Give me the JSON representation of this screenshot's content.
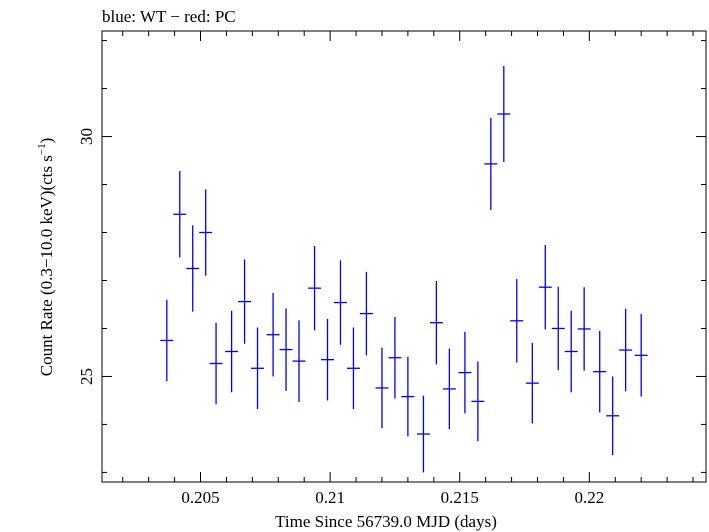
{
  "chart_data": {
    "type": "scatter",
    "title": "blue: WT − red: PC",
    "xlabel": "Time Since 56739.0 MJD (days)",
    "ylabel_main": "Count Rate (0.3−10.0 keV)(cts s",
    "ylabel_sup": "−1",
    "ylabel_end": ")",
    "xlim": [
      0.2012,
      0.2245
    ],
    "ylim": [
      22.8,
      32.2
    ],
    "x_ticks": [
      {
        "value": 0.205,
        "label": "0.205"
      },
      {
        "value": 0.21,
        "label": "0.21"
      },
      {
        "value": 0.215,
        "label": "0.215"
      },
      {
        "value": 0.22,
        "label": "0.22"
      }
    ],
    "y_ticks": [
      {
        "value": 25,
        "label": "25"
      },
      {
        "value": 30,
        "label": "30"
      }
    ],
    "grid": false,
    "series": [
      {
        "name": "WT",
        "color": "#0000ff",
        "x_err": 0.00025,
        "points": [
          {
            "x": 0.2037,
            "y": 25.75,
            "yerr": 0.85
          },
          {
            "x": 0.2042,
            "y": 28.38,
            "yerr": 0.9
          },
          {
            "x": 0.2047,
            "y": 27.25,
            "yerr": 0.9
          },
          {
            "x": 0.2052,
            "y": 28.0,
            "yerr": 0.9
          },
          {
            "x": 0.2056,
            "y": 25.27,
            "yerr": 0.85
          },
          {
            "x": 0.2062,
            "y": 25.52,
            "yerr": 0.85
          },
          {
            "x": 0.2067,
            "y": 26.56,
            "yerr": 0.88
          },
          {
            "x": 0.2072,
            "y": 25.17,
            "yerr": 0.85
          },
          {
            "x": 0.2078,
            "y": 25.87,
            "yerr": 0.87
          },
          {
            "x": 0.2083,
            "y": 25.56,
            "yerr": 0.86
          },
          {
            "x": 0.2088,
            "y": 25.32,
            "yerr": 0.85
          },
          {
            "x": 0.2094,
            "y": 26.84,
            "yerr": 0.88
          },
          {
            "x": 0.2099,
            "y": 25.35,
            "yerr": 0.85
          },
          {
            "x": 0.2104,
            "y": 26.54,
            "yerr": 0.88
          },
          {
            "x": 0.2109,
            "y": 25.17,
            "yerr": 0.85
          },
          {
            "x": 0.2114,
            "y": 26.31,
            "yerr": 0.87
          },
          {
            "x": 0.212,
            "y": 24.76,
            "yerr": 0.84
          },
          {
            "x": 0.2125,
            "y": 25.39,
            "yerr": 0.85
          },
          {
            "x": 0.213,
            "y": 24.58,
            "yerr": 0.83
          },
          {
            "x": 0.2136,
            "y": 23.8,
            "yerr": 0.8
          },
          {
            "x": 0.2141,
            "y": 26.12,
            "yerr": 0.87
          },
          {
            "x": 0.2146,
            "y": 24.74,
            "yerr": 0.84
          },
          {
            "x": 0.2152,
            "y": 25.08,
            "yerr": 0.85
          },
          {
            "x": 0.2157,
            "y": 24.48,
            "yerr": 0.83
          },
          {
            "x": 0.2162,
            "y": 29.43,
            "yerr": 0.96
          },
          {
            "x": 0.2167,
            "y": 30.47,
            "yerr": 1.0
          },
          {
            "x": 0.2172,
            "y": 26.16,
            "yerr": 0.87
          },
          {
            "x": 0.2178,
            "y": 24.86,
            "yerr": 0.84
          },
          {
            "x": 0.2183,
            "y": 26.86,
            "yerr": 0.88
          },
          {
            "x": 0.2188,
            "y": 26.0,
            "yerr": 0.87
          },
          {
            "x": 0.2193,
            "y": 25.52,
            "yerr": 0.85
          },
          {
            "x": 0.2198,
            "y": 25.99,
            "yerr": 0.87
          },
          {
            "x": 0.2204,
            "y": 25.1,
            "yerr": 0.85
          },
          {
            "x": 0.2209,
            "y": 24.18,
            "yerr": 0.82
          },
          {
            "x": 0.2214,
            "y": 25.55,
            "yerr": 0.86
          },
          {
            "x": 0.222,
            "y": 25.44,
            "yerr": 0.86
          }
        ]
      }
    ]
  }
}
